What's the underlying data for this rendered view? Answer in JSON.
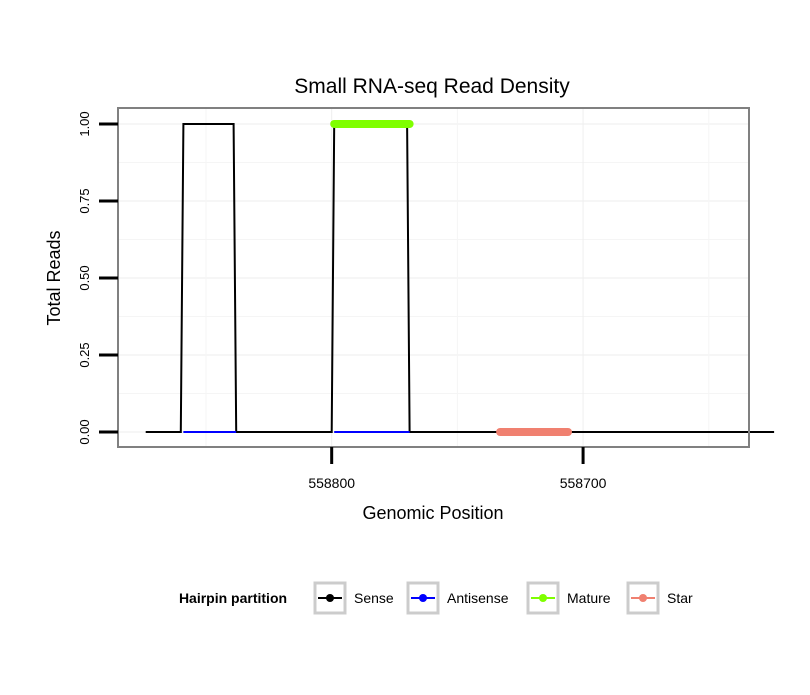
{
  "chart_data": {
    "type": "line",
    "title": "Small RNA-seq Read Density",
    "xlabel": "Genomic Position",
    "ylabel": "Total Reads",
    "xlim": [
      558885,
      558634
    ],
    "ylim": [
      0,
      1
    ],
    "x_ticks": [
      558800,
      558700
    ],
    "x_tick_labels": [
      "558800",
      "558700"
    ],
    "y_ticks": [
      0,
      0.25,
      0.5,
      0.75,
      1
    ],
    "y_tick_labels": [
      "0.00",
      "0.25",
      "0.50",
      "0.75",
      "1.00"
    ],
    "grid": true,
    "legend": {
      "title": "Hairpin partition",
      "position": "bottom"
    },
    "series": [
      {
        "name": "Sense",
        "color": "#000000",
        "points": [
          [
            558874,
            0
          ],
          [
            558860,
            0
          ],
          [
            558859,
            1
          ],
          [
            558839,
            1
          ],
          [
            558838,
            0
          ],
          [
            558800,
            0
          ],
          [
            558799,
            1
          ],
          [
            558770,
            1
          ],
          [
            558769,
            0
          ],
          [
            558624,
            0
          ]
        ]
      },
      {
        "name": "Antisense",
        "color": "#0000ff",
        "segments": [
          [
            558859,
            558838,
            0
          ],
          [
            558799,
            558769,
            0
          ]
        ]
      },
      {
        "name": "Mature",
        "color": "#7fff00",
        "segments": [
          [
            558799,
            558769,
            1
          ]
        ]
      },
      {
        "name": "Star",
        "color": "#f08070",
        "segments": [
          [
            558733,
            558706,
            0
          ]
        ]
      }
    ]
  }
}
